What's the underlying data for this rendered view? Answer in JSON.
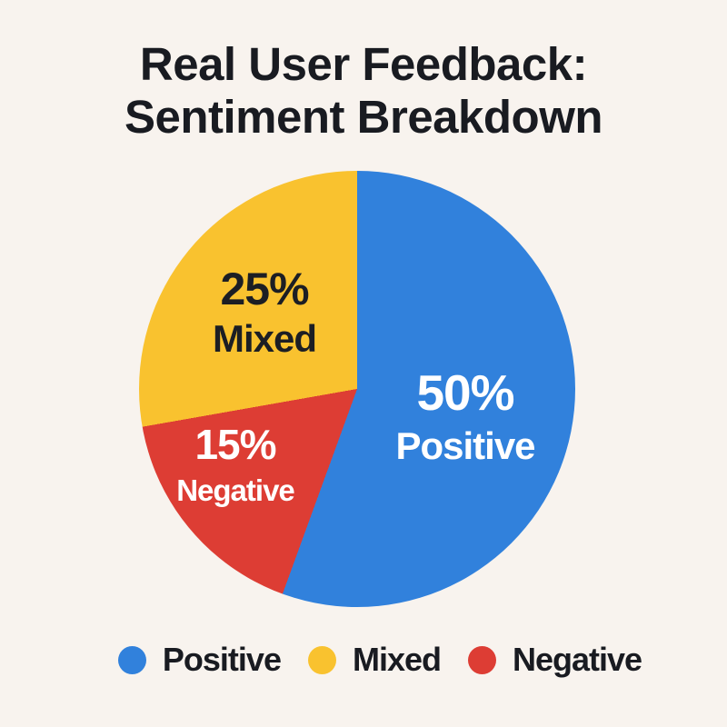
{
  "title": {
    "line1": "Real User Feedback:",
    "line2": "Sentiment Breakdown"
  },
  "chart_data": {
    "type": "pie",
    "title": "Real User Feedback: Sentiment Breakdown",
    "unit": "percent",
    "slices": [
      {
        "label": "Positive",
        "value": 50,
        "pct_label": "50%",
        "color": "#3181dc",
        "label_color": "#ffffff"
      },
      {
        "label": "Mixed",
        "value": 25,
        "pct_label": "25%",
        "color": "#f9c22f",
        "label_color": "#1c1e24"
      },
      {
        "label": "Negative",
        "value": 15,
        "pct_label": "15%",
        "color": "#dd3d34",
        "label_color": "#ffffff"
      }
    ],
    "start_angle_deg": 0,
    "direction": "clockwise",
    "draw_order_clockwise_from_top": [
      "Positive",
      "Negative",
      "Mixed"
    ],
    "labels_inside_slices": true,
    "legend_position": "bottom"
  },
  "legend": {
    "items": [
      {
        "label": "Positive",
        "color": "#3181dc"
      },
      {
        "label": "Mixed",
        "color": "#f9c22f"
      },
      {
        "label": "Negative",
        "color": "#dd3d34"
      }
    ]
  },
  "colors": {
    "background": "#f8f3ee",
    "title_text": "#191b21",
    "positive": "#3181dc",
    "mixed": "#f9c22f",
    "negative": "#dd3d34",
    "slice_text_light": "#ffffff",
    "slice_text_dark": "#1c1e24"
  }
}
